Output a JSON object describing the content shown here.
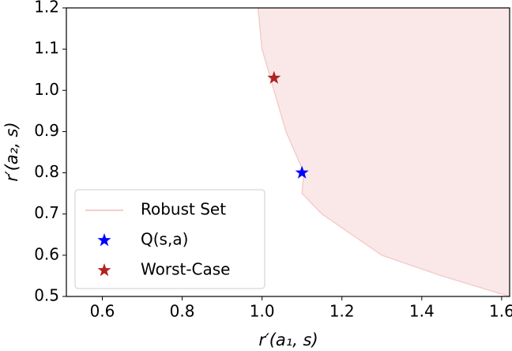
{
  "chart_data": {
    "type": "scatter",
    "x_label": "r′(a₁, s)",
    "y_label": "r′(a₂, s)",
    "xlim": [
      0.51,
      1.62
    ],
    "ylim": [
      0.5,
      1.2
    ],
    "xticks": [
      0.6,
      0.8,
      {
        "value": 1,
        "label": "1.0"
      },
      1.2,
      1.4,
      1.6
    ],
    "yticks": [
      0.5,
      0.6,
      0.7,
      0.8,
      0.9,
      {
        "value": 1,
        "label": "1.0"
      },
      1.1,
      1.2
    ],
    "legend": "lower left",
    "series": [
      {
        "name": "Robust Set",
        "style": "region",
        "color": "#f4cccc",
        "x": [
          0.99,
          1.0,
          1.03,
          1.06,
          1.105,
          1.1,
          1.15,
          1.3,
          1.45,
          1.62
        ],
        "y": [
          1.2,
          1.1,
          1.0,
          0.9,
          0.8,
          0.75,
          0.7,
          0.6,
          0.55,
          0.5
        ]
      },
      {
        "name": "Q(s,a)",
        "style": "star",
        "color": "#0000ff",
        "x": [
          1.1
        ],
        "y": [
          0.8
        ]
      },
      {
        "name": "Worst-Case",
        "style": "star",
        "color": "#b22222",
        "x": [
          1.03
        ],
        "y": [
          1.03
        ]
      }
    ]
  }
}
